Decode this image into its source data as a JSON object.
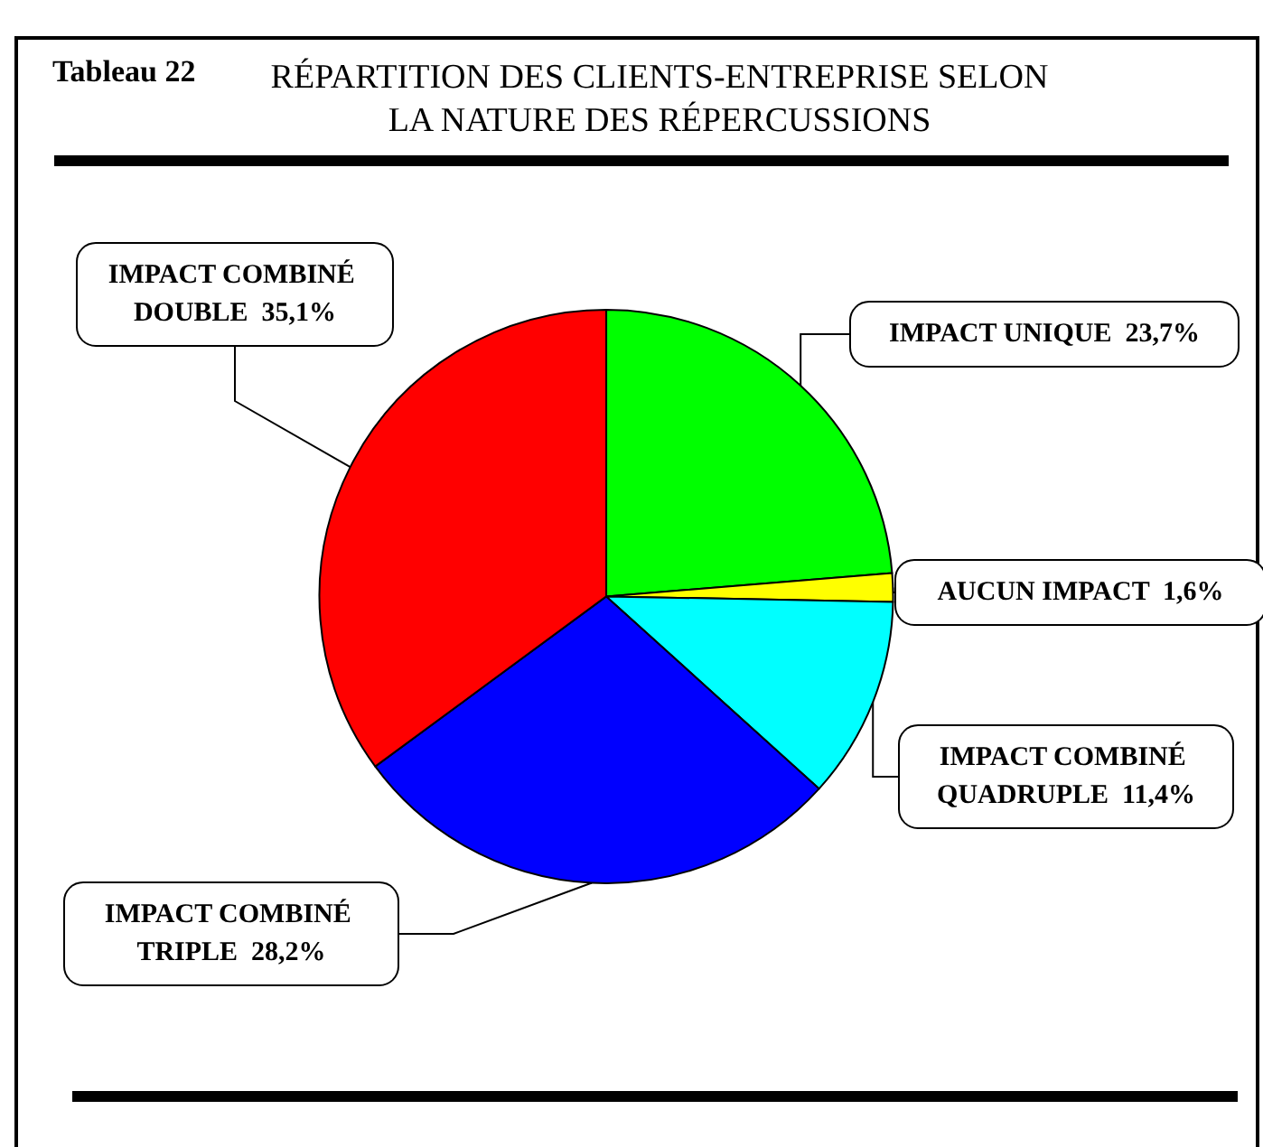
{
  "chart_data": {
    "type": "pie",
    "title": "RÉPARTITION DES CLIENTS-ENTREPRISE SELON\nLA NATURE DES RÉPERCUSSIONS",
    "subtitle": "Tableau 22",
    "categories": [
      "IMPACT UNIQUE",
      "AUCUN IMPACT",
      "IMPACT COMBINÉ QUADRUPLE",
      "IMPACT COMBINÉ TRIPLE",
      "IMPACT COMBINÉ DOUBLE"
    ],
    "values": [
      23.7,
      1.6,
      11.4,
      28.2,
      35.1
    ],
    "value_labels": [
      "23,7%",
      "1,6%",
      "11,4%",
      "28,2%",
      "35,1%"
    ],
    "colors": [
      "#00ff00",
      "#ffff00",
      "#00ffff",
      "#0000ff",
      "#ff0000"
    ]
  }
}
